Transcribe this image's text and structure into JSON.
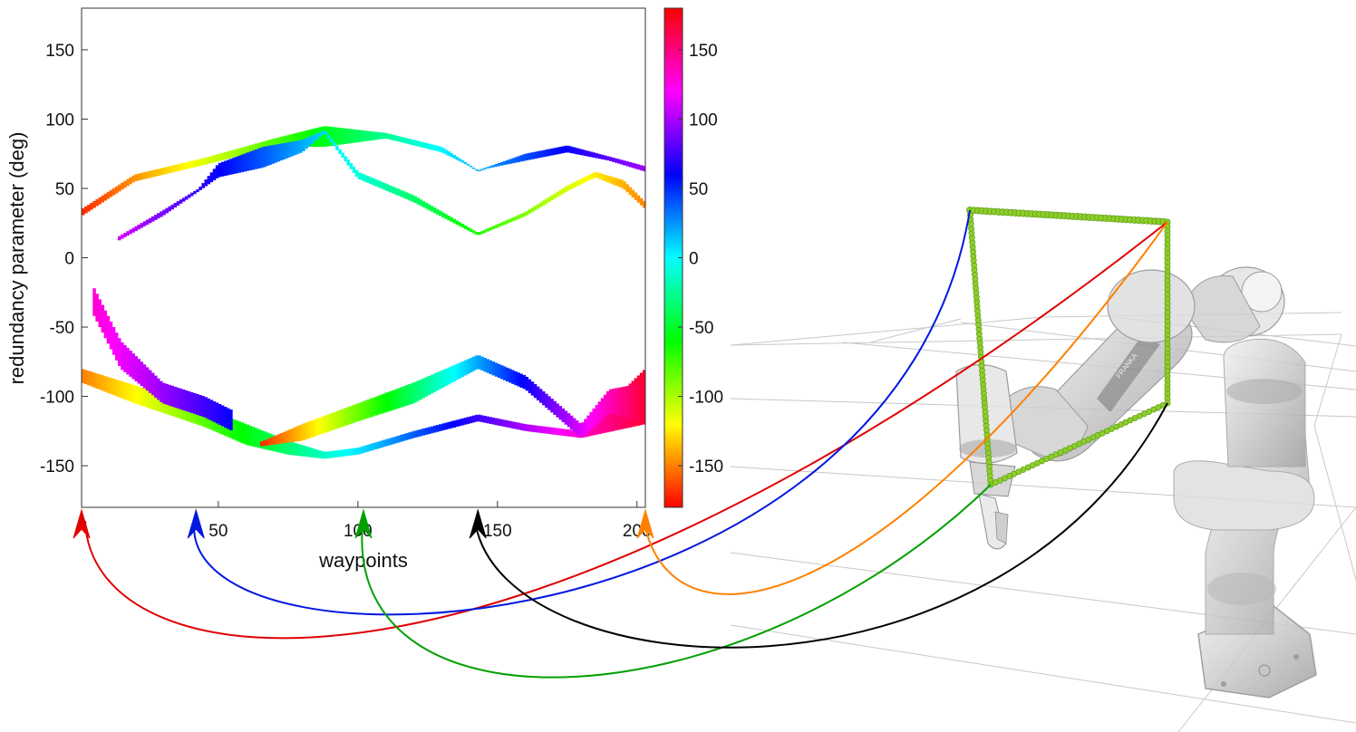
{
  "chart_data": {
    "type": "heatmap",
    "xlabel": "waypoints",
    "ylabel": "redundancy parameter (deg)",
    "xlim": [
      1,
      203
    ],
    "ylim": [
      -180,
      180
    ],
    "x_ticks": [
      "50",
      "100",
      "150",
      "200"
    ],
    "x_tick_values": [
      50,
      100,
      150,
      200
    ],
    "y_ticks": [
      "150",
      "100",
      "50",
      "0",
      "-50",
      "-100",
      "-150"
    ],
    "y_tick_values": [
      150,
      100,
      50,
      0,
      -50,
      -100,
      -150
    ],
    "colorbar": {
      "lim": [
        -180,
        180
      ],
      "ticks": [
        "150",
        "100",
        "50",
        "0",
        "-50",
        "-100",
        "-150"
      ],
      "tick_values": [
        150,
        100,
        50,
        0,
        -50,
        -100,
        -150
      ],
      "colormap": "hsv"
    },
    "grid": false,
    "feasible_bands": [
      {
        "name": "upper-outer",
        "x": [
          1,
          20,
          45,
          70,
          88,
          110,
          130,
          143,
          160,
          175,
          190,
          203
        ],
        "top": [
          35,
          60,
          72,
          86,
          95,
          90,
          80,
          63,
          75,
          81,
          73,
          66
        ],
        "bottom": [
          30,
          55,
          67,
          80,
          80,
          86,
          76,
          63,
          70,
          76,
          70,
          62
        ],
        "value_start": -170,
        "value_end": 100
      },
      {
        "name": "upper-inner",
        "x": [
          14,
          30,
          43,
          50,
          66,
          80,
          88,
          100,
          120,
          143,
          160,
          175,
          185,
          195,
          203
        ],
        "top": [
          15,
          34,
          50,
          68,
          80,
          85,
          92,
          62,
          45,
          18,
          33,
          52,
          62,
          56,
          40
        ],
        "bottom": [
          12,
          30,
          48,
          58,
          65,
          76,
          90,
          57,
          40,
          16,
          30,
          48,
          58,
          50,
          35
        ],
        "value_start": 110,
        "value_end": -150
      },
      {
        "name": "lower-wide",
        "x": [
          1,
          20,
          45,
          60,
          75,
          88,
          100,
          120,
          143,
          160,
          180,
          203
        ],
        "top": [
          -80,
          -92,
          -108,
          -120,
          -132,
          -140,
          -137,
          -125,
          -113,
          -120,
          -125,
          -80
        ],
        "bottom": [
          -90,
          -105,
          -122,
          -135,
          -142,
          -145,
          -142,
          -130,
          -118,
          -125,
          -130,
          -120
        ],
        "value_start": -150,
        "value_end": 170
      },
      {
        "name": "lower-violet",
        "x": [
          5,
          15,
          30,
          45,
          55
        ],
        "top": [
          -20,
          -60,
          -90,
          -100,
          -110
        ],
        "bottom": [
          -40,
          -80,
          -105,
          -115,
          -125
        ],
        "value_start": 130,
        "value_end": 60
      },
      {
        "name": "lower-inner",
        "x": [
          65,
          80,
          100,
          120,
          143,
          160,
          180,
          190,
          203
        ],
        "top": [
          -133,
          -120,
          -105,
          -90,
          -70,
          -85,
          -120,
          -95,
          -90
        ],
        "bottom": [
          -136,
          -132,
          -118,
          -105,
          -80,
          -95,
          -130,
          -112,
          -120
        ],
        "value_start": -170,
        "value_end": 170
      }
    ],
    "markers": [
      {
        "x": 1,
        "color": "#e00000"
      },
      {
        "x": 42,
        "color": "#0018e0"
      },
      {
        "x": 102,
        "color": "#00a000"
      },
      {
        "x": 143,
        "color": "#000000"
      },
      {
        "x": 203,
        "color": "#ff8000"
      }
    ]
  },
  "robot": {
    "logo_text": "FRANKA",
    "path_color": "#8ccf2a"
  },
  "colors": {
    "marker_red": "#e00000",
    "marker_blue": "#0018e0",
    "marker_green": "#00a000",
    "marker_black": "#000000",
    "marker_orange": "#ff8000"
  }
}
